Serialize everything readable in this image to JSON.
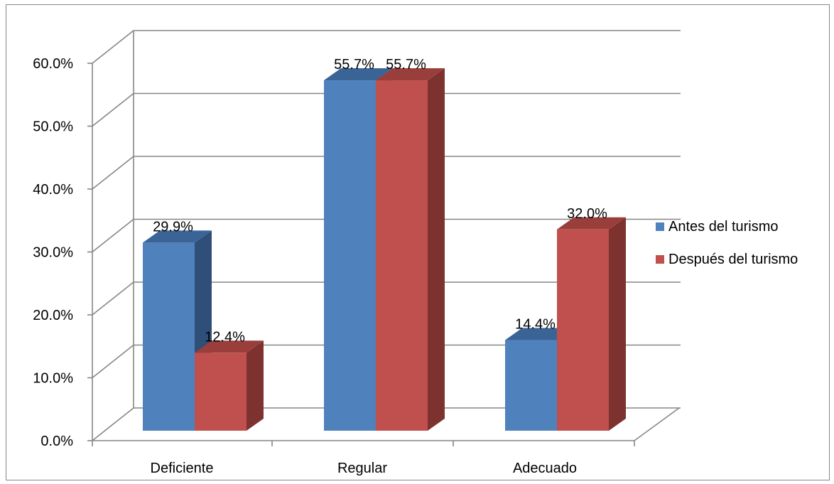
{
  "chart_data": {
    "type": "bar",
    "title": "",
    "xlabel": "",
    "ylabel": "",
    "categories": [
      "Deficiente",
      "Regular",
      "Adecuado"
    ],
    "series": [
      {
        "name": "Antes del turismo",
        "values": [
          29.9,
          55.7,
          14.4
        ],
        "labels": [
          "29.9%",
          "55.7%",
          "14.4%"
        ]
      },
      {
        "name": "Después del turismo",
        "values": [
          12.4,
          55.7,
          32.0
        ],
        "labels": [
          "12.4%",
          "55.7%",
          "32.0%"
        ]
      }
    ],
    "ylim": [
      0,
      60
    ],
    "yticks": [
      "0.0%",
      "10.0%",
      "20.0%",
      "30.0%",
      "40.0%",
      "50.0%",
      "60.0%"
    ],
    "grid": true,
    "legend_position": "right",
    "style": "3d-clustered-column",
    "colors": {
      "series_0": {
        "front": "#4F81BD",
        "top": "#3A6496",
        "side": "#2F4F78"
      },
      "series_1": {
        "front": "#C0504D",
        "top": "#9A3E3B",
        "side": "#7E3230"
      },
      "grid": "#868686"
    }
  }
}
